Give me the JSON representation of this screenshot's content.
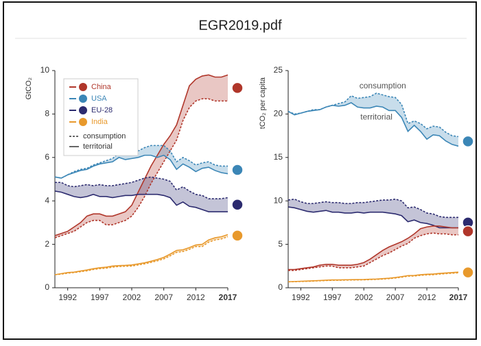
{
  "window_title": "EGR2019.pdf",
  "chart_data": [
    {
      "type": "line",
      "y_label": "GtCO₂",
      "x": [
        1990,
        1991,
        1992,
        1993,
        1994,
        1995,
        1996,
        1997,
        1998,
        1999,
        2000,
        2001,
        2002,
        2003,
        2004,
        2005,
        2006,
        2007,
        2008,
        2009,
        2010,
        2011,
        2012,
        2013,
        2014,
        2015,
        2016,
        2017
      ],
      "xlim": [
        1990,
        2017
      ],
      "xticks": [
        1992,
        1997,
        2002,
        2007,
        2012,
        2017
      ],
      "ylim": [
        0,
        10
      ],
      "yticks": [
        0,
        2,
        4,
        6,
        8,
        10
      ],
      "legend": "upper left",
      "line_styles": [
        "consumption",
        "territorial"
      ],
      "series": [
        {
          "name": "China",
          "color": "#b0362a",
          "territorial": [
            2.4,
            2.5,
            2.6,
            2.8,
            3.0,
            3.3,
            3.4,
            3.4,
            3.3,
            3.3,
            3.4,
            3.5,
            3.8,
            4.4,
            5.0,
            5.6,
            6.1,
            6.6,
            7.0,
            7.5,
            8.4,
            9.3,
            9.6,
            9.75,
            9.8,
            9.7,
            9.7,
            9.8
          ],
          "consumption": [
            2.3,
            2.4,
            2.5,
            2.6,
            2.8,
            3.0,
            3.1,
            3.1,
            2.9,
            2.9,
            3.0,
            3.1,
            3.3,
            3.7,
            4.2,
            4.8,
            5.3,
            5.8,
            6.3,
            6.8,
            7.7,
            8.3,
            8.6,
            8.7,
            8.7,
            8.6,
            8.6,
            8.6
          ]
        },
        {
          "name": "USA",
          "color": "#3b86b6",
          "territorial": [
            5.1,
            5.05,
            5.2,
            5.3,
            5.4,
            5.45,
            5.6,
            5.7,
            5.75,
            5.8,
            6.0,
            5.9,
            5.95,
            6.0,
            6.1,
            6.1,
            6.0,
            6.1,
            5.9,
            5.45,
            5.7,
            5.55,
            5.35,
            5.5,
            5.55,
            5.4,
            5.3,
            5.25
          ],
          "consumption": [
            5.1,
            5.05,
            5.2,
            5.35,
            5.45,
            5.5,
            5.65,
            5.75,
            5.85,
            5.95,
            6.2,
            6.15,
            6.2,
            6.3,
            6.45,
            6.55,
            6.55,
            6.55,
            6.3,
            5.8,
            6.0,
            5.85,
            5.65,
            5.75,
            5.8,
            5.65,
            5.6,
            5.6
          ]
        },
        {
          "name": "EU-28",
          "color": "#2c2b6f",
          "territorial": [
            4.45,
            4.4,
            4.3,
            4.2,
            4.15,
            4.2,
            4.3,
            4.2,
            4.2,
            4.15,
            4.2,
            4.25,
            4.25,
            4.3,
            4.3,
            4.3,
            4.3,
            4.25,
            4.15,
            3.8,
            3.95,
            3.75,
            3.7,
            3.6,
            3.5,
            3.5,
            3.5,
            3.5
          ],
          "consumption": [
            4.85,
            4.85,
            4.7,
            4.65,
            4.7,
            4.75,
            4.7,
            4.75,
            4.7,
            4.7,
            4.75,
            4.8,
            4.85,
            4.95,
            5.05,
            5.1,
            5.05,
            5.0,
            4.9,
            4.5,
            4.65,
            4.45,
            4.3,
            4.25,
            4.1,
            4.1,
            4.1,
            4.15
          ]
        },
        {
          "name": "India",
          "color": "#e8992c",
          "territorial": [
            0.6,
            0.65,
            0.7,
            0.72,
            0.77,
            0.82,
            0.88,
            0.92,
            0.95,
            1.0,
            1.02,
            1.03,
            1.05,
            1.1,
            1.15,
            1.22,
            1.3,
            1.4,
            1.55,
            1.72,
            1.75,
            1.85,
            1.97,
            2.0,
            2.2,
            2.3,
            2.35,
            2.45
          ],
          "consumption": [
            0.6,
            0.63,
            0.67,
            0.7,
            0.74,
            0.78,
            0.84,
            0.88,
            0.9,
            0.95,
            0.98,
            0.99,
            1.0,
            1.05,
            1.1,
            1.17,
            1.24,
            1.33,
            1.47,
            1.63,
            1.67,
            1.77,
            1.9,
            1.9,
            2.1,
            2.2,
            2.25,
            2.35
          ]
        }
      ]
    },
    {
      "type": "line",
      "y_label": "tCO₂ per capita",
      "x": [
        1990,
        1991,
        1992,
        1993,
        1994,
        1995,
        1996,
        1997,
        1998,
        1999,
        2000,
        2001,
        2002,
        2003,
        2004,
        2005,
        2006,
        2007,
        2008,
        2009,
        2010,
        2011,
        2012,
        2013,
        2014,
        2015,
        2016,
        2017
      ],
      "xlim": [
        1990,
        2017
      ],
      "xticks": [
        1992,
        1997,
        2002,
        2007,
        2012,
        2017
      ],
      "ylim": [
        0,
        25
      ],
      "yticks": [
        0,
        5,
        10,
        15,
        20,
        25
      ],
      "annotations": [
        "consumption",
        "territorial"
      ],
      "series": [
        {
          "name": "USA",
          "color": "#3b86b6",
          "territorial": [
            20.3,
            19.9,
            20.1,
            20.3,
            20.4,
            20.5,
            20.8,
            21.0,
            20.9,
            21.0,
            21.3,
            20.8,
            20.7,
            20.7,
            20.9,
            20.8,
            20.4,
            20.4,
            19.6,
            18.0,
            18.7,
            18.0,
            17.1,
            17.6,
            17.5,
            16.9,
            16.5,
            16.3
          ],
          "consumption": [
            20.3,
            20.0,
            20.1,
            20.3,
            20.5,
            20.5,
            20.8,
            21.0,
            21.2,
            21.4,
            22.1,
            21.8,
            21.9,
            22.0,
            22.4,
            22.2,
            22.0,
            21.9,
            21.1,
            18.9,
            19.2,
            18.9,
            18.3,
            18.6,
            18.5,
            17.9,
            17.5,
            17.4
          ]
        },
        {
          "name": "EU-28",
          "color": "#2c2b6f",
          "territorial": [
            9.3,
            9.2,
            9.0,
            8.8,
            8.7,
            8.8,
            8.9,
            8.7,
            8.7,
            8.6,
            8.6,
            8.7,
            8.6,
            8.7,
            8.7,
            8.7,
            8.6,
            8.5,
            8.3,
            7.6,
            7.8,
            7.5,
            7.4,
            7.2,
            6.9,
            6.9,
            6.9,
            6.9
          ],
          "consumption": [
            10.1,
            10.2,
            9.9,
            9.7,
            9.7,
            9.8,
            9.9,
            9.8,
            9.8,
            9.7,
            9.7,
            9.8,
            9.8,
            9.9,
            10.0,
            10.1,
            10.1,
            10.2,
            10.0,
            9.2,
            9.3,
            9.0,
            8.6,
            8.5,
            8.2,
            8.1,
            8.1,
            8.1
          ]
        },
        {
          "name": "China",
          "color": "#b0362a",
          "territorial": [
            2.1,
            2.1,
            2.2,
            2.3,
            2.4,
            2.6,
            2.7,
            2.7,
            2.6,
            2.6,
            2.6,
            2.7,
            2.9,
            3.3,
            3.8,
            4.3,
            4.7,
            5.0,
            5.3,
            5.7,
            6.2,
            6.8,
            7.0,
            7.1,
            7.1,
            7.0,
            6.9,
            6.9
          ],
          "consumption": [
            2.0,
            2.0,
            2.1,
            2.2,
            2.3,
            2.4,
            2.5,
            2.5,
            2.3,
            2.3,
            2.3,
            2.4,
            2.5,
            2.9,
            3.3,
            3.7,
            4.0,
            4.4,
            4.8,
            5.1,
            5.7,
            6.0,
            6.2,
            6.3,
            6.2,
            6.2,
            6.1,
            6.1
          ]
        },
        {
          "name": "India",
          "color": "#e8992c",
          "territorial": [
            0.7,
            0.72,
            0.75,
            0.77,
            0.8,
            0.83,
            0.87,
            0.9,
            0.9,
            0.92,
            0.93,
            0.94,
            0.95,
            0.98,
            1.0,
            1.05,
            1.1,
            1.18,
            1.28,
            1.4,
            1.42,
            1.5,
            1.55,
            1.58,
            1.65,
            1.7,
            1.75,
            1.8
          ],
          "consumption": [
            0.68,
            0.7,
            0.72,
            0.74,
            0.77,
            0.8,
            0.83,
            0.86,
            0.86,
            0.88,
            0.89,
            0.9,
            0.91,
            0.94,
            0.96,
            1.0,
            1.05,
            1.12,
            1.22,
            1.33,
            1.35,
            1.43,
            1.48,
            1.5,
            1.57,
            1.62,
            1.67,
            1.72
          ]
        }
      ]
    }
  ]
}
